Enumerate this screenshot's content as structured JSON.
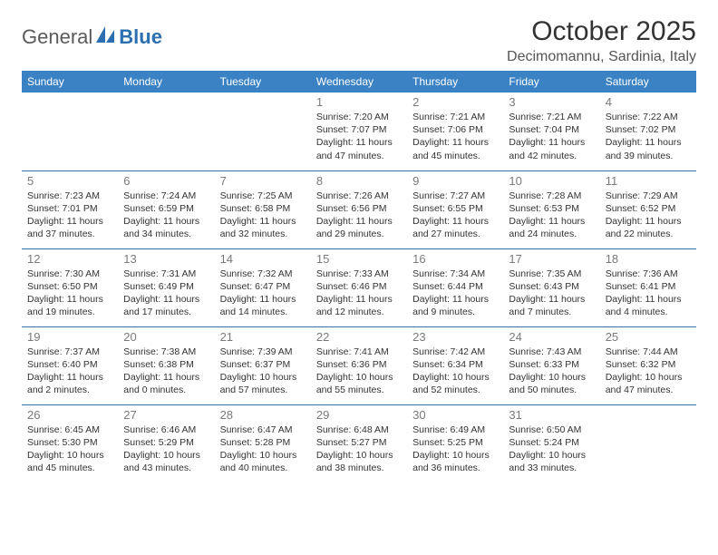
{
  "logo": {
    "part1": "General",
    "part2": "Blue"
  },
  "title": "October 2025",
  "location": "Decimomannu, Sardinia, Italy",
  "colors": {
    "header_bg": "#3b82c4",
    "header_fg": "#ffffff",
    "row_border": "#3b6fa0",
    "logo_gray": "#5a5a5a",
    "logo_blue": "#2b6fb0"
  },
  "weekdays": [
    "Sunday",
    "Monday",
    "Tuesday",
    "Wednesday",
    "Thursday",
    "Friday",
    "Saturday"
  ],
  "weeks": [
    [
      null,
      null,
      null,
      {
        "d": "1",
        "sr": "Sunrise: 7:20 AM",
        "ss": "Sunset: 7:07 PM",
        "dl1": "Daylight: 11 hours",
        "dl2": "and 47 minutes."
      },
      {
        "d": "2",
        "sr": "Sunrise: 7:21 AM",
        "ss": "Sunset: 7:06 PM",
        "dl1": "Daylight: 11 hours",
        "dl2": "and 45 minutes."
      },
      {
        "d": "3",
        "sr": "Sunrise: 7:21 AM",
        "ss": "Sunset: 7:04 PM",
        "dl1": "Daylight: 11 hours",
        "dl2": "and 42 minutes."
      },
      {
        "d": "4",
        "sr": "Sunrise: 7:22 AM",
        "ss": "Sunset: 7:02 PM",
        "dl1": "Daylight: 11 hours",
        "dl2": "and 39 minutes."
      }
    ],
    [
      {
        "d": "5",
        "sr": "Sunrise: 7:23 AM",
        "ss": "Sunset: 7:01 PM",
        "dl1": "Daylight: 11 hours",
        "dl2": "and 37 minutes."
      },
      {
        "d": "6",
        "sr": "Sunrise: 7:24 AM",
        "ss": "Sunset: 6:59 PM",
        "dl1": "Daylight: 11 hours",
        "dl2": "and 34 minutes."
      },
      {
        "d": "7",
        "sr": "Sunrise: 7:25 AM",
        "ss": "Sunset: 6:58 PM",
        "dl1": "Daylight: 11 hours",
        "dl2": "and 32 minutes."
      },
      {
        "d": "8",
        "sr": "Sunrise: 7:26 AM",
        "ss": "Sunset: 6:56 PM",
        "dl1": "Daylight: 11 hours",
        "dl2": "and 29 minutes."
      },
      {
        "d": "9",
        "sr": "Sunrise: 7:27 AM",
        "ss": "Sunset: 6:55 PM",
        "dl1": "Daylight: 11 hours",
        "dl2": "and 27 minutes."
      },
      {
        "d": "10",
        "sr": "Sunrise: 7:28 AM",
        "ss": "Sunset: 6:53 PM",
        "dl1": "Daylight: 11 hours",
        "dl2": "and 24 minutes."
      },
      {
        "d": "11",
        "sr": "Sunrise: 7:29 AM",
        "ss": "Sunset: 6:52 PM",
        "dl1": "Daylight: 11 hours",
        "dl2": "and 22 minutes."
      }
    ],
    [
      {
        "d": "12",
        "sr": "Sunrise: 7:30 AM",
        "ss": "Sunset: 6:50 PM",
        "dl1": "Daylight: 11 hours",
        "dl2": "and 19 minutes."
      },
      {
        "d": "13",
        "sr": "Sunrise: 7:31 AM",
        "ss": "Sunset: 6:49 PM",
        "dl1": "Daylight: 11 hours",
        "dl2": "and 17 minutes."
      },
      {
        "d": "14",
        "sr": "Sunrise: 7:32 AM",
        "ss": "Sunset: 6:47 PM",
        "dl1": "Daylight: 11 hours",
        "dl2": "and 14 minutes."
      },
      {
        "d": "15",
        "sr": "Sunrise: 7:33 AM",
        "ss": "Sunset: 6:46 PM",
        "dl1": "Daylight: 11 hours",
        "dl2": "and 12 minutes."
      },
      {
        "d": "16",
        "sr": "Sunrise: 7:34 AM",
        "ss": "Sunset: 6:44 PM",
        "dl1": "Daylight: 11 hours",
        "dl2": "and 9 minutes."
      },
      {
        "d": "17",
        "sr": "Sunrise: 7:35 AM",
        "ss": "Sunset: 6:43 PM",
        "dl1": "Daylight: 11 hours",
        "dl2": "and 7 minutes."
      },
      {
        "d": "18",
        "sr": "Sunrise: 7:36 AM",
        "ss": "Sunset: 6:41 PM",
        "dl1": "Daylight: 11 hours",
        "dl2": "and 4 minutes."
      }
    ],
    [
      {
        "d": "19",
        "sr": "Sunrise: 7:37 AM",
        "ss": "Sunset: 6:40 PM",
        "dl1": "Daylight: 11 hours",
        "dl2": "and 2 minutes."
      },
      {
        "d": "20",
        "sr": "Sunrise: 7:38 AM",
        "ss": "Sunset: 6:38 PM",
        "dl1": "Daylight: 11 hours",
        "dl2": "and 0 minutes."
      },
      {
        "d": "21",
        "sr": "Sunrise: 7:39 AM",
        "ss": "Sunset: 6:37 PM",
        "dl1": "Daylight: 10 hours",
        "dl2": "and 57 minutes."
      },
      {
        "d": "22",
        "sr": "Sunrise: 7:41 AM",
        "ss": "Sunset: 6:36 PM",
        "dl1": "Daylight: 10 hours",
        "dl2": "and 55 minutes."
      },
      {
        "d": "23",
        "sr": "Sunrise: 7:42 AM",
        "ss": "Sunset: 6:34 PM",
        "dl1": "Daylight: 10 hours",
        "dl2": "and 52 minutes."
      },
      {
        "d": "24",
        "sr": "Sunrise: 7:43 AM",
        "ss": "Sunset: 6:33 PM",
        "dl1": "Daylight: 10 hours",
        "dl2": "and 50 minutes."
      },
      {
        "d": "25",
        "sr": "Sunrise: 7:44 AM",
        "ss": "Sunset: 6:32 PM",
        "dl1": "Daylight: 10 hours",
        "dl2": "and 47 minutes."
      }
    ],
    [
      {
        "d": "26",
        "sr": "Sunrise: 6:45 AM",
        "ss": "Sunset: 5:30 PM",
        "dl1": "Daylight: 10 hours",
        "dl2": "and 45 minutes."
      },
      {
        "d": "27",
        "sr": "Sunrise: 6:46 AM",
        "ss": "Sunset: 5:29 PM",
        "dl1": "Daylight: 10 hours",
        "dl2": "and 43 minutes."
      },
      {
        "d": "28",
        "sr": "Sunrise: 6:47 AM",
        "ss": "Sunset: 5:28 PM",
        "dl1": "Daylight: 10 hours",
        "dl2": "and 40 minutes."
      },
      {
        "d": "29",
        "sr": "Sunrise: 6:48 AM",
        "ss": "Sunset: 5:27 PM",
        "dl1": "Daylight: 10 hours",
        "dl2": "and 38 minutes."
      },
      {
        "d": "30",
        "sr": "Sunrise: 6:49 AM",
        "ss": "Sunset: 5:25 PM",
        "dl1": "Daylight: 10 hours",
        "dl2": "and 36 minutes."
      },
      {
        "d": "31",
        "sr": "Sunrise: 6:50 AM",
        "ss": "Sunset: 5:24 PM",
        "dl1": "Daylight: 10 hours",
        "dl2": "and 33 minutes."
      },
      null
    ]
  ]
}
